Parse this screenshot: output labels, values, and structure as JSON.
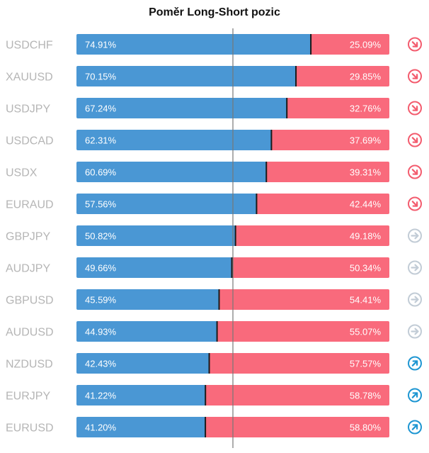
{
  "title": "Poměr Long-Short pozic",
  "colors": {
    "long": "#4a97d4",
    "short": "#f96a7c",
    "divider": "#1a1a1a",
    "axis": "#777777",
    "label": "#b5b5b5",
    "icon_down": "#f35c6e",
    "icon_neutral": "#c2ccd6",
    "icon_up": "#1e96d2"
  },
  "chart_data": {
    "type": "bar",
    "stacked": true,
    "orientation": "horizontal",
    "categories": [
      "USDCHF",
      "XAUUSD",
      "USDJPY",
      "USDCAD",
      "USDX",
      "EURAUD",
      "GBPJPY",
      "AUDJPY",
      "GBPUSD",
      "AUDUSD",
      "NZDUSD",
      "EURJPY",
      "EURUSD"
    ],
    "series": [
      {
        "values": [
          74.91,
          70.15,
          67.24,
          62.31,
          60.69,
          57.56,
          50.82,
          49.66,
          45.59,
          44.93,
          42.43,
          41.22,
          41.2
        ],
        "labels": [
          "74.91%",
          "70.15%",
          "67.24%",
          "62.31%",
          "60.69%",
          "57.56%",
          "50.82%",
          "49.66%",
          "45.59%",
          "44.93%",
          "42.43%",
          "41.22%",
          "41.20%"
        ]
      },
      {
        "values": [
          25.09,
          29.85,
          32.76,
          37.69,
          39.31,
          42.44,
          49.18,
          50.34,
          54.41,
          55.07,
          57.57,
          58.78,
          58.8
        ],
        "labels": [
          "25.09%",
          "29.85%",
          "32.76%",
          "37.69%",
          "39.31%",
          "42.44%",
          "49.18%",
          "50.34%",
          "54.41%",
          "55.07%",
          "57.57%",
          "58.78%",
          "58.80%"
        ]
      }
    ],
    "xlim": [
      0,
      100
    ],
    "reference_line": 50,
    "signals": [
      "down",
      "down",
      "down",
      "down",
      "down",
      "down",
      "neutral",
      "neutral",
      "neutral",
      "neutral",
      "up",
      "up",
      "up"
    ]
  }
}
